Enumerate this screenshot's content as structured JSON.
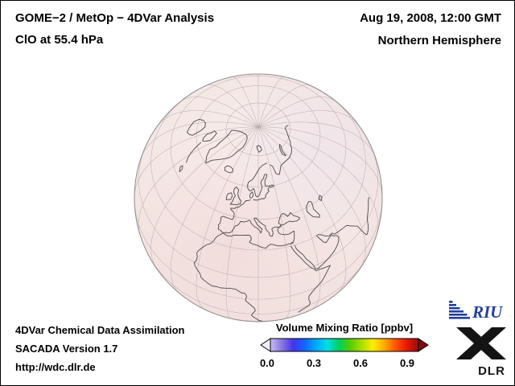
{
  "header": {
    "title_line1": "GOME−2 / MetOp − 4DVar Analysis",
    "title_line2": "ClO at 55.4 hPa",
    "date_line1": "Aug 19, 2008, 12:00 GMT",
    "date_line2": "Northern Hemisphere"
  },
  "globe": {
    "fill_center": "#f8efed",
    "fill_mid": "#f3e5e2",
    "fill_edge": "#ecdbd9",
    "tint_pink": "#efd2d2",
    "tint_lavender": "#e7e1f1",
    "graticule_color": "#bfb0b0",
    "coastline_color": "#4a4a4a",
    "outline_color": "#8d8d8d"
  },
  "footer": {
    "line1": "4DVar Chemical Data Assimilation",
    "line2": "SACADA Version 1.7",
    "line3": "http://wdc.dlr.de"
  },
  "colorbar": {
    "title": "Volume Mixing Ratio [ppbv]",
    "ticks": [
      "0.0",
      "0.3",
      "0.6",
      "0.9"
    ],
    "gradient": [
      "#c8bdf0",
      "#8877e0",
      "#4433ee",
      "#1166ff",
      "#00aaff",
      "#00e0e0",
      "#00d060",
      "#55cc00",
      "#aadd00",
      "#ffee00",
      "#ffaa00",
      "#ff5500",
      "#e81500",
      "#8f0f10"
    ],
    "left_arrow_color": "#f2eefb",
    "right_arrow_color": "#7c0c10"
  },
  "logos": {
    "riu_text": "RIU",
    "riu_color": "#23409a",
    "dlr_text": "DLR",
    "dlr_color": "#141414"
  }
}
